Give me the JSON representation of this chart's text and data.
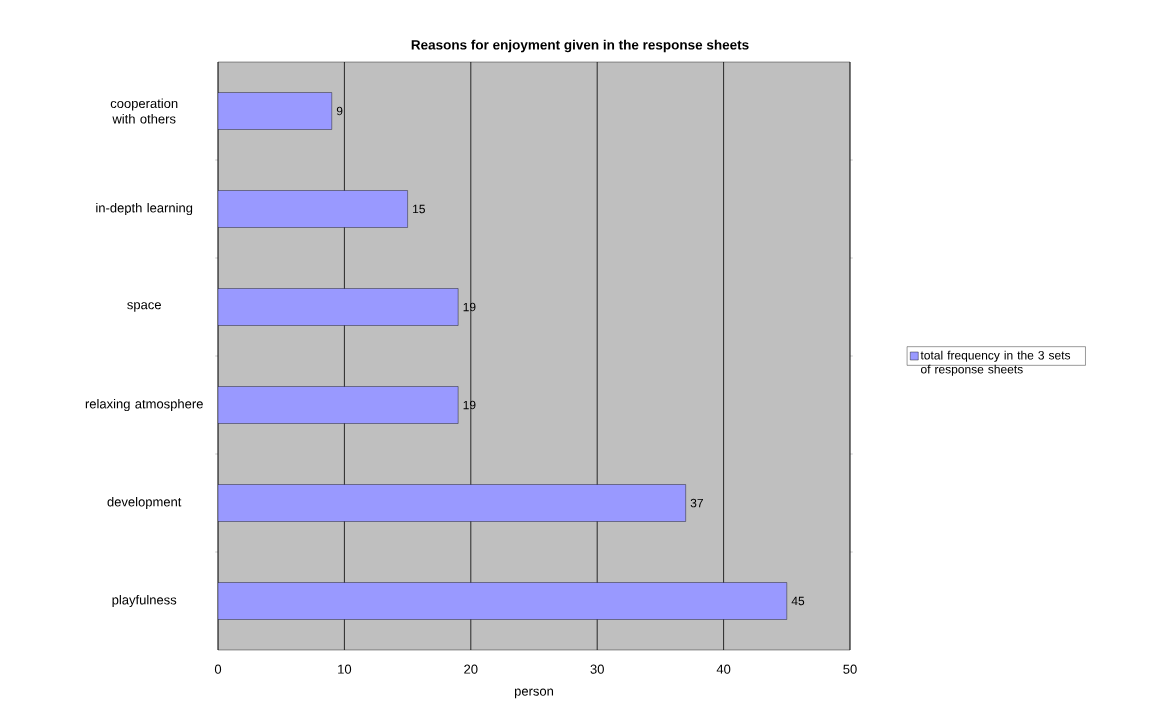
{
  "chart_data": {
    "type": "bar",
    "orientation": "horizontal",
    "title": "Reasons for enjoyment given in the response sheets",
    "xlabel": "person",
    "categories": [
      "cooperation with others",
      "in-depth learning",
      "space",
      "relaxing atmosphere",
      "development",
      "playfulness"
    ],
    "series": [
      {
        "name": "total frequency in the 3 sets of response sheets",
        "color": "#9999ff",
        "values": [
          9,
          15,
          19,
          19,
          37,
          45
        ]
      }
    ],
    "xlim": [
      0,
      50
    ],
    "xticks": [
      0,
      10,
      20,
      30,
      40,
      50
    ],
    "grid": "x",
    "legend": "right",
    "data_labels": true
  }
}
